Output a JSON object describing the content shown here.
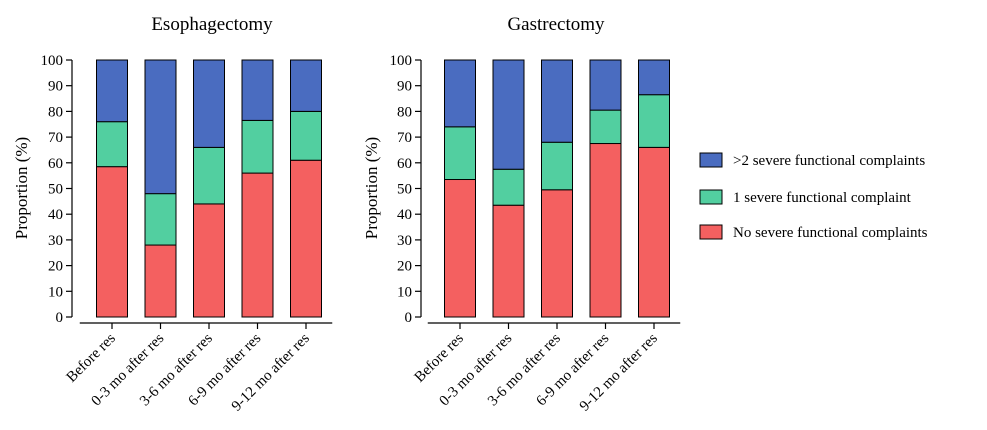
{
  "chart_data": [
    {
      "type": "bar",
      "stacked": true,
      "title": "Esophagectomy",
      "xlabel": "",
      "ylabel": "Proportion (%)",
      "ylim": [
        0,
        100
      ],
      "yticks": [
        "0",
        "10",
        "20",
        "30",
        "40",
        "50",
        "60",
        "70",
        "80",
        "90",
        "100"
      ],
      "grid": false,
      "categories": [
        "Before res",
        "0-3 mo after res",
        "3-6 mo after res",
        "6-9 mo after res",
        "9-12 mo after res"
      ],
      "series": [
        {
          "name": "No severe functional complaints",
          "color": "#F46060",
          "values": [
            58.5,
            28,
            44,
            56,
            61
          ]
        },
        {
          "name": "1 severe functional complaint",
          "color": "#52CFA0",
          "values": [
            17.5,
            20,
            22,
            20.5,
            19
          ]
        },
        {
          "name": ">2 severe functional complaints",
          "color": "#4A6CC0",
          "values": [
            24,
            52,
            34,
            23.5,
            20
          ]
        }
      ]
    },
    {
      "type": "bar",
      "stacked": true,
      "title": "Gastrectomy",
      "xlabel": "",
      "ylabel": "Proportion (%)",
      "ylim": [
        0,
        100
      ],
      "yticks": [
        "0",
        "10",
        "20",
        "30",
        "40",
        "50",
        "60",
        "70",
        "80",
        "90",
        "100"
      ],
      "grid": false,
      "categories": [
        "Before res",
        "0-3 mo after res",
        "3-6 mo after res",
        "6-9 mo after res",
        "9-12 mo after res"
      ],
      "series": [
        {
          "name": "No severe functional complaints",
          "color": "#F46060",
          "values": [
            53.5,
            43.5,
            49.5,
            67.5,
            66
          ]
        },
        {
          "name": "1 severe functional complaint",
          "color": "#52CFA0",
          "values": [
            20.5,
            14,
            18.5,
            13,
            20.5
          ]
        },
        {
          "name": ">2 severe functional complaints",
          "color": "#4A6CC0",
          "values": [
            26,
            42.5,
            32,
            19.5,
            13.5
          ]
        }
      ]
    }
  ],
  "legend": {
    "position": "right",
    "items": [
      {
        "label": ">2 severe functional complaints",
        "color": "#4A6CC0"
      },
      {
        "label": "1 severe functional complaint",
        "color": "#52CFA0"
      },
      {
        "label": "No severe functional complaints",
        "color": "#F46060"
      }
    ]
  }
}
